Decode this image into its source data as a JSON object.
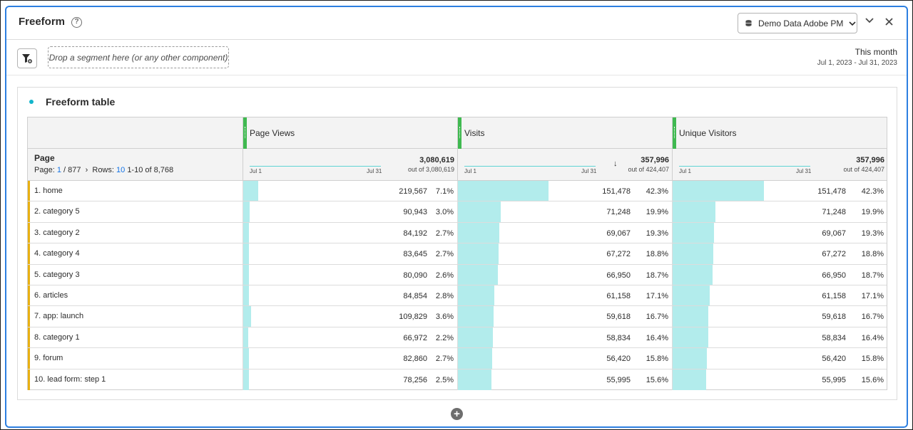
{
  "header": {
    "title": "Freeform",
    "data_source_label": "Demo Data Adobe PM"
  },
  "segment_bar": {
    "dropzone_text": "Drop a segment here (or any other component)",
    "date_label": "This month",
    "date_range": "Jul 1, 2023 - Jul 31, 2023"
  },
  "table": {
    "title": "Freeform table",
    "dimension": "Page",
    "pager": {
      "page_prefix": "Page:",
      "page_current": "1",
      "page_total": "/ 877",
      "rows_label": "Rows:",
      "rows_value": "10",
      "range": "1-10 of 8,768"
    },
    "spark_start": "Jul 1",
    "spark_end": "Jul 31",
    "metrics": [
      {
        "label": "Page Views",
        "total": "3,080,619",
        "out_of": "out of 3,080,619",
        "sorted": false
      },
      {
        "label": "Visits",
        "total": "357,996",
        "out_of": "out of 424,407",
        "sorted": true
      },
      {
        "label": "Unique Visitors",
        "total": "357,996",
        "out_of": "out of 424,407",
        "sorted": false
      }
    ],
    "rows": [
      {
        "label": "1.  home",
        "pv": "219,567",
        "pv_pct": "7.1%",
        "pv_frac": 0.071,
        "v": "151,478",
        "v_pct": "42.3%",
        "v_frac": 0.423,
        "u": "151,478",
        "u_pct": "42.3%",
        "u_frac": 0.423
      },
      {
        "label": "2.  category 5",
        "pv": "90,943",
        "pv_pct": "3.0%",
        "pv_frac": 0.03,
        "v": "71,248",
        "v_pct": "19.9%",
        "v_frac": 0.199,
        "u": "71,248",
        "u_pct": "19.9%",
        "u_frac": 0.199
      },
      {
        "label": "3.  category 2",
        "pv": "84,192",
        "pv_pct": "2.7%",
        "pv_frac": 0.027,
        "v": "69,067",
        "v_pct": "19.3%",
        "v_frac": 0.193,
        "u": "69,067",
        "u_pct": "19.3%",
        "u_frac": 0.193
      },
      {
        "label": "4.  category 4",
        "pv": "83,645",
        "pv_pct": "2.7%",
        "pv_frac": 0.027,
        "v": "67,272",
        "v_pct": "18.8%",
        "v_frac": 0.188,
        "u": "67,272",
        "u_pct": "18.8%",
        "u_frac": 0.188
      },
      {
        "label": "5.  category 3",
        "pv": "80,090",
        "pv_pct": "2.6%",
        "pv_frac": 0.026,
        "v": "66,950",
        "v_pct": "18.7%",
        "v_frac": 0.187,
        "u": "66,950",
        "u_pct": "18.7%",
        "u_frac": 0.187
      },
      {
        "label": "6.  articles",
        "pv": "84,854",
        "pv_pct": "2.8%",
        "pv_frac": 0.028,
        "v": "61,158",
        "v_pct": "17.1%",
        "v_frac": 0.171,
        "u": "61,158",
        "u_pct": "17.1%",
        "u_frac": 0.171
      },
      {
        "label": "7.  app: launch",
        "pv": "109,829",
        "pv_pct": "3.6%",
        "pv_frac": 0.036,
        "v": "59,618",
        "v_pct": "16.7%",
        "v_frac": 0.167,
        "u": "59,618",
        "u_pct": "16.7%",
        "u_frac": 0.167
      },
      {
        "label": "8.  category 1",
        "pv": "66,972",
        "pv_pct": "2.2%",
        "pv_frac": 0.022,
        "v": "58,834",
        "v_pct": "16.4%",
        "v_frac": 0.164,
        "u": "58,834",
        "u_pct": "16.4%",
        "u_frac": 0.164
      },
      {
        "label": "9.  forum",
        "pv": "82,860",
        "pv_pct": "2.7%",
        "pv_frac": 0.027,
        "v": "56,420",
        "v_pct": "15.8%",
        "v_frac": 0.158,
        "u": "56,420",
        "u_pct": "15.8%",
        "u_frac": 0.158
      },
      {
        "label": "10.  lead form: step 1",
        "pv": "78,256",
        "pv_pct": "2.5%",
        "pv_frac": 0.025,
        "v": "55,995",
        "v_pct": "15.6%",
        "v_frac": 0.156,
        "u": "55,995",
        "u_pct": "15.6%",
        "u_frac": 0.156
      }
    ]
  },
  "colors": {
    "accent_blue": "#2d7fe0",
    "metric_grip": "#3fb950",
    "bar_fill": "#b2ecec",
    "row_accent": "#e8b012",
    "title_dot": "#12b5cb"
  },
  "icons": [
    "help-icon",
    "database-icon",
    "chevron-down-icon",
    "close-icon",
    "segment-filter-icon",
    "sort-down-icon",
    "add-icon"
  ]
}
